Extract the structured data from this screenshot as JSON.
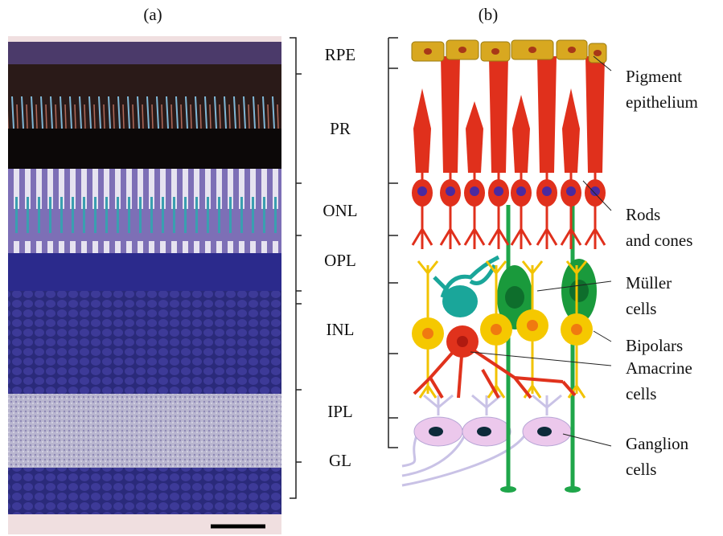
{
  "panels": [
    {
      "label": "(a)"
    },
    {
      "label": "(b)"
    }
  ],
  "layers": [
    {
      "label": "RPE"
    },
    {
      "label": "PR"
    },
    {
      "label": "ONL"
    },
    {
      "label": "OPL"
    },
    {
      "label": "INL"
    },
    {
      "label": "IPL"
    },
    {
      "label": "GL"
    }
  ],
  "annotations": [
    {
      "lines": [
        "Pigment",
        "epithelium"
      ]
    },
    {
      "lines": [
        "Rods",
        "and cones"
      ]
    },
    {
      "lines": [
        "Müller",
        "cells"
      ]
    },
    {
      "lines": [
        "Bipolars"
      ]
    },
    {
      "lines": [
        "Amacrine",
        "cells"
      ]
    },
    {
      "lines": [
        "Ganglion",
        "cells"
      ]
    }
  ]
}
